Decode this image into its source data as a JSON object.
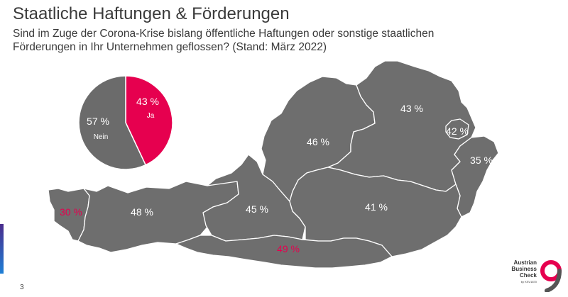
{
  "header": {
    "title": "Staatliche Haftungen & Förderungen",
    "subtitle_line1": "Sind im Zuge der Corona-Krise bislang öffentliche Haftungen oder sonstige staatlichen",
    "subtitle_line2": "Förderungen in Ihr Unternehmen geflossen? (Stand: März 2022)"
  },
  "footer": {
    "page_number": "3",
    "logo_line1": "Austrian",
    "logo_line2": "Business",
    "logo_line3": "Check",
    "logo_line4": "by KSV1870"
  },
  "colors": {
    "map_gray": "#6e6e6e",
    "pie_gray": "#6b6b6b",
    "accent_pink": "#e6004f",
    "label_white": "#ffffff",
    "border_white": "#ffffff"
  },
  "chart_data": [
    {
      "type": "pie",
      "categories": [
        "Ja",
        "Nein"
      ],
      "values": [
        43,
        57
      ],
      "labels": [
        "43 %",
        "57 %"
      ]
    },
    {
      "type": "map",
      "regions": [
        {
          "name": "Vorarlberg",
          "value": 30,
          "label": "30 %",
          "highlight": true
        },
        {
          "name": "Tirol",
          "value": 48,
          "label": "48 %",
          "highlight": false
        },
        {
          "name": "Salzburg",
          "value": 45,
          "label": "45 %",
          "highlight": false
        },
        {
          "name": "Oberösterreich",
          "value": 46,
          "label": "46 %",
          "highlight": false
        },
        {
          "name": "Niederösterreich",
          "value": 43,
          "label": "43 %",
          "highlight": false
        },
        {
          "name": "Wien",
          "value": 42,
          "label": "42 %",
          "highlight": false
        },
        {
          "name": "Burgenland",
          "value": 35,
          "label": "35 %",
          "highlight": false
        },
        {
          "name": "Steiermark",
          "value": 41,
          "label": "41 %",
          "highlight": false
        },
        {
          "name": "Kärnten",
          "value": 49,
          "label": "49 %",
          "highlight": true
        }
      ]
    }
  ]
}
